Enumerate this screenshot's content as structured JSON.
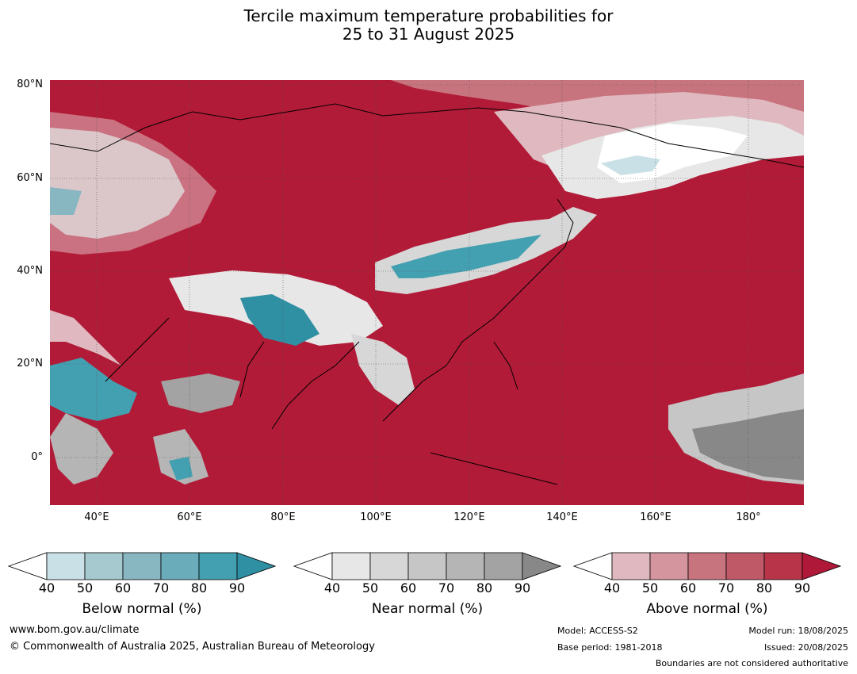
{
  "title_line1": "Tercile maximum temperature probabilities for",
  "title_line2": "25 to 31 August 2025",
  "map": {
    "lat_labels": [
      "80°N",
      "60°N",
      "40°N",
      "20°N",
      "0°"
    ],
    "lon_labels": [
      "40°E",
      "60°E",
      "80°E",
      "100°E",
      "120°E",
      "140°E",
      "160°E",
      "180°"
    ]
  },
  "colorbars": [
    {
      "name": "Below normal (%)",
      "ticks": [
        "40",
        "50",
        "60",
        "70",
        "80",
        "90"
      ],
      "colors": [
        "#ffffff",
        "#c9e1e6",
        "#a6c8cf",
        "#88b6c1",
        "#6aacb9",
        "#43a0b1",
        "#2f8fa3"
      ]
    },
    {
      "name": "Near normal (%)",
      "ticks": [
        "40",
        "50",
        "60",
        "70",
        "80",
        "90"
      ],
      "colors": [
        "#ffffff",
        "#e7e7e7",
        "#d7d7d7",
        "#c6c6c6",
        "#b5b5b5",
        "#a3a3a3",
        "#888888"
      ]
    },
    {
      "name": "Above normal (%)",
      "ticks": [
        "40",
        "50",
        "60",
        "70",
        "80",
        "90"
      ],
      "colors": [
        "#ffffff",
        "#dfb9bf",
        "#d4959e",
        "#c8747f",
        "#bf5968",
        "#b83449",
        "#b0183a"
      ]
    }
  ],
  "footer": {
    "website": "www.bom.gov.au/climate",
    "copyright": "© Commonwealth of Australia 2025, Australian Bureau of Meteorology",
    "model": "Model: ACCESS-S2",
    "base_period": "Base period: 1981-2018",
    "model_run": "Model run: 18/08/2025",
    "issued": "Issued: 20/08/2025",
    "disclaimer": "Boundaries are not considered authoritative"
  }
}
